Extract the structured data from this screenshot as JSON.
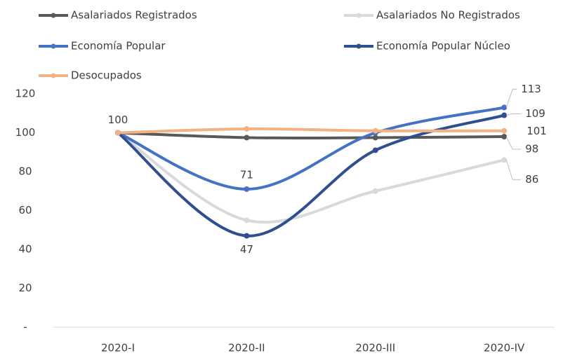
{
  "chart_data": {
    "type": "line",
    "categories": [
      "2020-I",
      "2020-II",
      "2020-III",
      "2020-IV"
    ],
    "series": [
      {
        "name": "Asalariados Registrados",
        "color": "#595959",
        "values": [
          100,
          97.5,
          97.5,
          98
        ],
        "value_labels": [
          "100",
          null,
          null,
          "98"
        ]
      },
      {
        "name": "Asalariados No Registrados",
        "color": "#d9d9d9",
        "values": [
          100,
          55,
          70,
          86
        ],
        "value_labels": [
          null,
          null,
          null,
          "86"
        ]
      },
      {
        "name": "Economía Popular",
        "color": "#4472c4",
        "values": [
          100,
          71,
          100,
          113
        ],
        "value_labels": [
          null,
          "71",
          null,
          "113"
        ]
      },
      {
        "name": "Economía Popular Núcleo",
        "color": "#2f4f8f",
        "values": [
          100,
          47,
          91,
          109
        ],
        "value_labels": [
          null,
          "47",
          null,
          "109"
        ]
      },
      {
        "name": "Desocupados",
        "color": "#f4b183",
        "values": [
          100,
          102,
          101,
          101
        ],
        "value_labels": [
          null,
          null,
          null,
          "101"
        ]
      }
    ],
    "ylim": [
      0,
      120
    ],
    "yticks": [
      {
        "value": 0,
        "label": "-"
      },
      20,
      40,
      60,
      80,
      100,
      120
    ],
    "grid": false
  }
}
